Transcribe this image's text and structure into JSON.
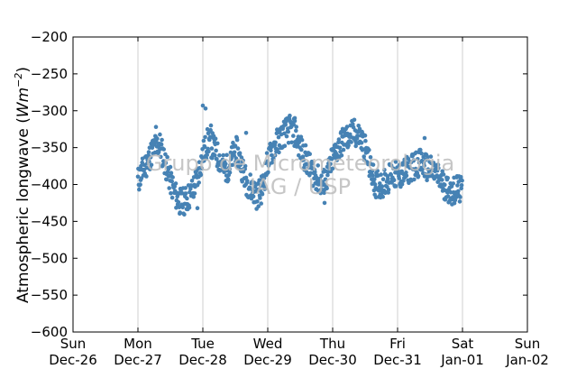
{
  "chart_data": {
    "type": "scatter",
    "title": "",
    "xlabel": "",
    "ylabel": "Atmospheric longwave (Wm⁻²)",
    "ylabel_parts": {
      "text": "Atmospheric longwave (",
      "unit_base": "Wm",
      "unit_exp": "−2",
      "close": ")"
    },
    "ylim": [
      -600,
      -200
    ],
    "yticks": [
      -200,
      -250,
      -300,
      -350,
      -400,
      -450,
      -500,
      -550,
      -600
    ],
    "ytick_labels": [
      "−200",
      "−250",
      "−300",
      "−350",
      "−400",
      "−450",
      "−500",
      "−550",
      "−600"
    ],
    "xlim_days": [
      0,
      7
    ],
    "xticks": [
      {
        "line1": "Sun",
        "line2": "Dec-26"
      },
      {
        "line1": "Mon",
        "line2": "Dec-27"
      },
      {
        "line1": "Tue",
        "line2": "Dec-28"
      },
      {
        "line1": "Wed",
        "line2": "Dec-29"
      },
      {
        "line1": "Thu",
        "line2": "Dec-30"
      },
      {
        "line1": "Fri",
        "line2": "Dec-31"
      },
      {
        "line1": "Sat",
        "line2": "Jan-01"
      },
      {
        "line1": "Sun",
        "line2": "Jan-02"
      }
    ],
    "grid": "vertical",
    "marker_color": "#4682b4",
    "watermark": [
      "Grupo de Micrometeorologia",
      "IAG / USP"
    ],
    "series": [
      {
        "points": [
          [
            "Mon Dec-27 00:00",
            -395
          ],
          [
            "Mon Dec-27 02:00",
            -380
          ],
          [
            "Mon Dec-27 04:00",
            -365
          ],
          [
            "Mon Dec-27 06:00",
            -350
          ],
          [
            "Mon Dec-27 08:00",
            -345
          ],
          [
            "Mon Dec-27 10:00",
            -370
          ],
          [
            "Mon Dec-27 12:00",
            -395
          ],
          [
            "Mon Dec-27 14:00",
            -415
          ],
          [
            "Mon Dec-27 16:00",
            -425
          ],
          [
            "Mon Dec-27 18:00",
            -420
          ],
          [
            "Mon Dec-27 20:00",
            -410
          ],
          [
            "Mon Dec-27 22:00",
            -390
          ],
          [
            "Tue Dec-28 00:00",
            -360
          ],
          [
            "Tue Dec-28 02:00",
            -340
          ],
          [
            "Tue Dec-28 04:00",
            -350
          ],
          [
            "Tue Dec-28 06:00",
            -365
          ],
          [
            "Tue Dec-28 08:00",
            -380
          ],
          [
            "Tue Dec-28 10:00",
            -375
          ],
          [
            "Tue Dec-28 12:00",
            -350
          ],
          [
            "Tue Dec-28 14:00",
            -370
          ],
          [
            "Tue Dec-28 16:00",
            -395
          ],
          [
            "Tue Dec-28 18:00",
            -405
          ],
          [
            "Tue Dec-28 20:00",
            -415
          ],
          [
            "Tue Dec-28 22:00",
            -405
          ],
          [
            "Wed Dec-29 00:00",
            -370
          ],
          [
            "Wed Dec-29 02:00",
            -350
          ],
          [
            "Wed Dec-29 04:00",
            -340
          ],
          [
            "Wed Dec-29 06:00",
            -330
          ],
          [
            "Wed Dec-29 08:00",
            -325
          ],
          [
            "Wed Dec-29 10:00",
            -330
          ],
          [
            "Wed Dec-29 12:00",
            -350
          ],
          [
            "Wed Dec-29 14:00",
            -365
          ],
          [
            "Wed Dec-29 16:00",
            -380
          ],
          [
            "Wed Dec-29 18:00",
            -390
          ],
          [
            "Wed Dec-29 20:00",
            -400
          ],
          [
            "Wed Dec-29 22:00",
            -390
          ],
          [
            "Thu Dec-30 00:00",
            -365
          ],
          [
            "Thu Dec-30 02:00",
            -350
          ],
          [
            "Thu Dec-30 04:00",
            -340
          ],
          [
            "Thu Dec-30 06:00",
            -335
          ],
          [
            "Thu Dec-30 08:00",
            -330
          ],
          [
            "Thu Dec-30 10:00",
            -335
          ],
          [
            "Thu Dec-30 12:00",
            -350
          ],
          [
            "Thu Dec-30 14:00",
            -380
          ],
          [
            "Thu Dec-30 16:00",
            -400
          ],
          [
            "Thu Dec-30 18:00",
            -400
          ],
          [
            "Thu Dec-30 20:00",
            -395
          ],
          [
            "Thu Dec-30 22:00",
            -385
          ],
          [
            "Fri Dec-31 00:00",
            -390
          ],
          [
            "Fri Dec-31 02:00",
            -385
          ],
          [
            "Fri Dec-31 04:00",
            -380
          ],
          [
            "Fri Dec-31 06:00",
            -375
          ],
          [
            "Fri Dec-31 08:00",
            -370
          ],
          [
            "Fri Dec-31 10:00",
            -375
          ],
          [
            "Fri Dec-31 12:00",
            -380
          ],
          [
            "Fri Dec-31 14:00",
            -385
          ],
          [
            "Fri Dec-31 16:00",
            -395
          ],
          [
            "Fri Dec-31 18:00",
            -405
          ],
          [
            "Fri Dec-31 20:00",
            -410
          ],
          [
            "Fri Dec-31 22:00",
            -405
          ],
          [
            "Sat Jan-01 00:00",
            -410
          ]
        ],
        "outliers": [
          [
            "Mon Dec-27 06:40",
            -322
          ],
          [
            "Tue Dec-28 00:00",
            -293
          ],
          [
            "Tue Dec-28 01:00",
            -297
          ],
          [
            "Tue Dec-28 03:00",
            -320
          ],
          [
            "Mon Dec-27 22:00",
            -432
          ],
          [
            "Wed Dec-29 10:00",
            -310
          ],
          [
            "Fri Dec-31 10:00",
            -337
          ],
          [
            "Wed Dec-29 21:00",
            -425
          ],
          [
            "Tue Dec-28 16:00",
            -330
          ]
        ]
      }
    ]
  }
}
